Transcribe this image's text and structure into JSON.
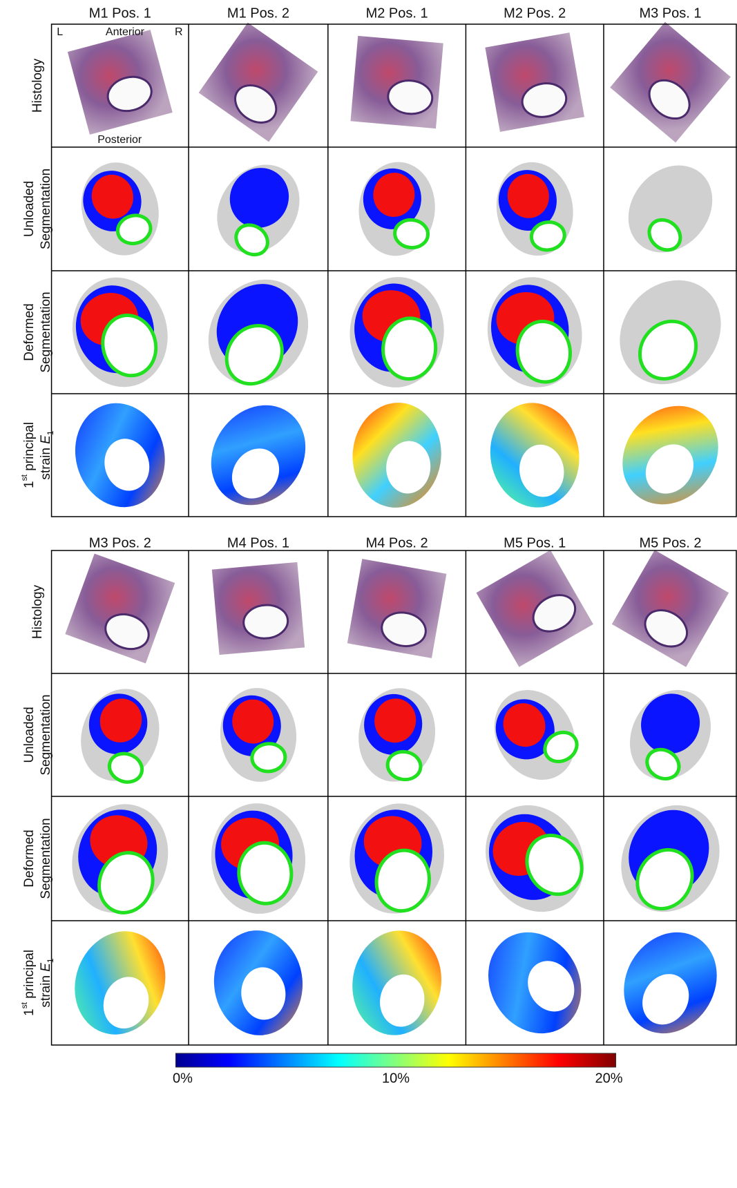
{
  "panels": [
    {
      "columns": [
        "M1 Pos. 1",
        "M1 Pos. 2",
        "M2 Pos. 1",
        "M2 Pos. 2",
        "M3 Pos. 1"
      ],
      "rows": [
        [
          [
            {
              "t": "Histology"
            }
          ]
        ],
        [
          [
            {
              "t": "Unloaded"
            }
          ],
          [
            {
              "t": "Segmentation"
            }
          ]
        ],
        [
          [
            {
              "t": "Deformed"
            }
          ],
          [
            {
              "t": "Segmentation"
            }
          ]
        ],
        [
          [
            {
              "t": "1"
            },
            {
              "t": "st",
              "sup": true
            },
            {
              "t": " principal"
            }
          ],
          [
            {
              "t": "strain "
            },
            {
              "t": "E",
              "italic": true
            },
            {
              "t": "1",
              "sub": true
            }
          ]
        ]
      ]
    },
    {
      "columns": [
        "M3 Pos. 2",
        "M4 Pos. 1",
        "M4 Pos. 2",
        "M5 Pos. 1",
        "M5 Pos. 2"
      ],
      "rows": [
        [
          [
            {
              "t": "Histology"
            }
          ]
        ],
        [
          [
            {
              "t": "Unloaded"
            }
          ],
          [
            {
              "t": "Segmentation"
            }
          ]
        ],
        [
          [
            {
              "t": "Deformed"
            }
          ],
          [
            {
              "t": "Segmentation"
            }
          ]
        ],
        [
          [
            {
              "t": "1"
            },
            {
              "t": "st",
              "sup": true
            },
            {
              "t": " principal"
            }
          ],
          [
            {
              "t": "strain "
            },
            {
              "t": "E",
              "italic": true
            },
            {
              "t": "1",
              "sub": true
            }
          ]
        ]
      ]
    }
  ],
  "annotations": {
    "left": "L",
    "top": "Anterior",
    "right": "R",
    "bottom": "Posterior"
  },
  "colorbar": {
    "labels": [
      "0%",
      "10%",
      "20%"
    ]
  }
}
